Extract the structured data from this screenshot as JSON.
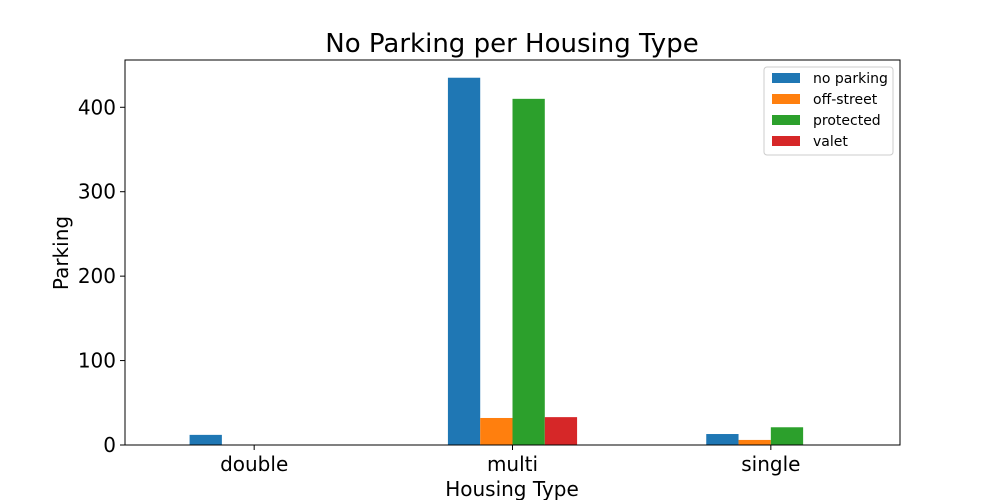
{
  "chart_data": {
    "type": "bar",
    "title": "No Parking per Housing Type",
    "xlabel": "Housing Type",
    "ylabel": "Parking",
    "categories": [
      "double",
      "multi",
      "single"
    ],
    "series": [
      {
        "name": "no parking",
        "color": "#1f77b4",
        "values": [
          12,
          435,
          13
        ]
      },
      {
        "name": "off-street",
        "color": "#ff7f0e",
        "values": [
          0,
          32,
          6
        ]
      },
      {
        "name": "protected",
        "color": "#2ca02c",
        "values": [
          0,
          410,
          21
        ]
      },
      {
        "name": "valet",
        "color": "#d62728",
        "values": [
          0,
          33,
          0
        ]
      }
    ],
    "ylim": [
      0,
      456
    ],
    "yticks": [
      0,
      100,
      200,
      300,
      400
    ],
    "grid": false,
    "legend_position": "top-right"
  }
}
